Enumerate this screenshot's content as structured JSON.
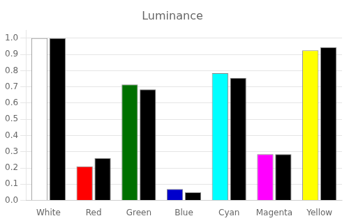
{
  "chart_data": {
    "type": "bar",
    "title": "Luminance",
    "categories": [
      "White",
      "Red",
      "Green",
      "Blue",
      "Cyan",
      "Magenta",
      "Yellow"
    ],
    "series": [
      {
        "values": [
          1.0,
          0.21,
          0.715,
          0.07,
          0.785,
          0.285,
          0.925
        ],
        "colors": [
          "#ffffff",
          "#ff0000",
          "#007000",
          "#0000cc",
          "#00ffff",
          "#ff00ff",
          "#ffff00"
        ]
      },
      {
        "values": [
          1.0,
          0.26,
          0.685,
          0.05,
          0.755,
          0.285,
          0.945
        ],
        "color": "#000000"
      }
    ],
    "ylim": [
      0.0,
      1.05
    ],
    "yticks": [
      {
        "value": 0.0,
        "label": "0.0"
      },
      0.1,
      0.2,
      0.3,
      0.4,
      0.5,
      0.6,
      0.7,
      0.8,
      0.9,
      {
        "value": 1.0,
        "label": "1.0"
      }
    ],
    "grid": true
  }
}
